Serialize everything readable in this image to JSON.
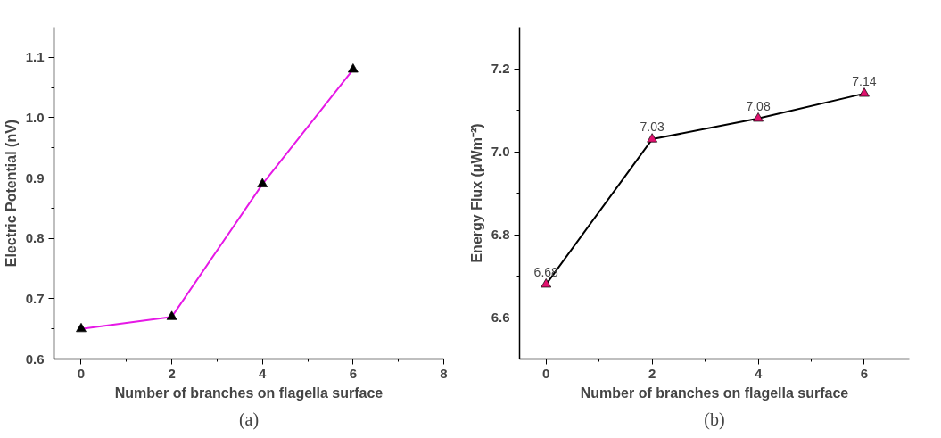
{
  "chart_data": [
    {
      "type": "line",
      "xlabel": "Number of branches on flagella surface",
      "ylabel": "Electric Potential (nV)",
      "x": [
        0,
        2,
        4,
        6
      ],
      "series": [
        {
          "color": "#e619e6",
          "colors": [
            "#000000",
            "#000000",
            "#000000",
            "#000000"
          ],
          "values": [
            0.65,
            0.67,
            0.89,
            1.08
          ]
        }
      ],
      "marker": "triangle",
      "line_style": "solid",
      "xlim": [
        -0.6,
        8
      ],
      "xticks": [
        0,
        2,
        4,
        6,
        8
      ],
      "ylim": [
        0.6,
        1.15
      ],
      "yticks": [
        0.6,
        0.7,
        0.8,
        0.9,
        {
          "value": 1,
          "label": "1.0"
        },
        1.1
      ],
      "grid": false,
      "annotations": [
        "(a)"
      ]
    },
    {
      "type": "line",
      "xlabel": "Number of branches on flagella surface",
      "ylabel": "Energy Flux (μWm⁻²)",
      "x": [
        0,
        2,
        4,
        6
      ],
      "series": [
        {
          "color": "#000000",
          "colors": [
            "#e0126e",
            "#e0126e",
            "#e0126e",
            "#e0126e"
          ],
          "values": [
            6.68,
            7.03,
            7.08,
            7.14
          ]
        }
      ],
      "marker": "triangle",
      "line_style": "solid",
      "data_labels": true,
      "xlim": [
        -0.5,
        6.85
      ],
      "xticks": [
        0,
        2,
        4,
        6
      ],
      "ylim": [
        6.5,
        7.3
      ],
      "yticks": [
        6.6,
        6.8,
        {
          "value": 7,
          "label": "7.0"
        },
        7.2
      ],
      "grid": false,
      "annotations": [
        "(b)"
      ]
    }
  ]
}
